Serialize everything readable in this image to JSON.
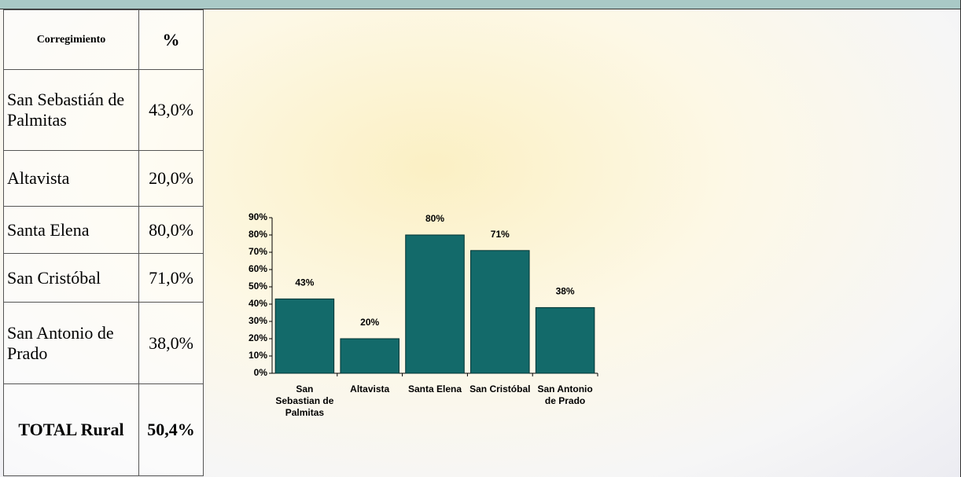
{
  "table": {
    "header": [
      "Corregimiento",
      "%"
    ],
    "rows": [
      [
        "San Sebastián de Palmitas",
        "43,0%"
      ],
      [
        "Altavista",
        "20,0%"
      ],
      [
        "Santa Elena",
        "80,0%"
      ],
      [
        "San Cristóbal",
        "71,0%"
      ],
      [
        "San Antonio de Prado",
        "38,0%"
      ]
    ],
    "total": [
      "TOTAL Rural",
      "50,4%"
    ]
  },
  "chart_data": {
    "type": "bar",
    "categories": [
      "San Sebastian de Palmitas",
      "Altavista",
      "Santa Elena",
      "San Cristóbal",
      "San Antonio de Prado"
    ],
    "values": [
      43,
      20,
      80,
      71,
      38
    ],
    "value_labels": [
      "43%",
      "20%",
      "80%",
      "71%",
      "38%"
    ],
    "color": "#136a6a",
    "ylim": [
      0,
      90
    ],
    "yticks": [
      {
        "value": 0,
        "label": "0%"
      },
      {
        "value": 10,
        "label": "10%"
      },
      {
        "value": 20,
        "label": "20%"
      },
      {
        "value": 30,
        "label": "30%"
      },
      {
        "value": 40,
        "label": "40%"
      },
      {
        "value": 50,
        "label": "50%"
      },
      {
        "value": 60,
        "label": "60%"
      },
      {
        "value": 70,
        "label": "70%"
      },
      {
        "value": 80,
        "label": "80%"
      },
      {
        "value": 90,
        "label": "90%"
      }
    ]
  }
}
